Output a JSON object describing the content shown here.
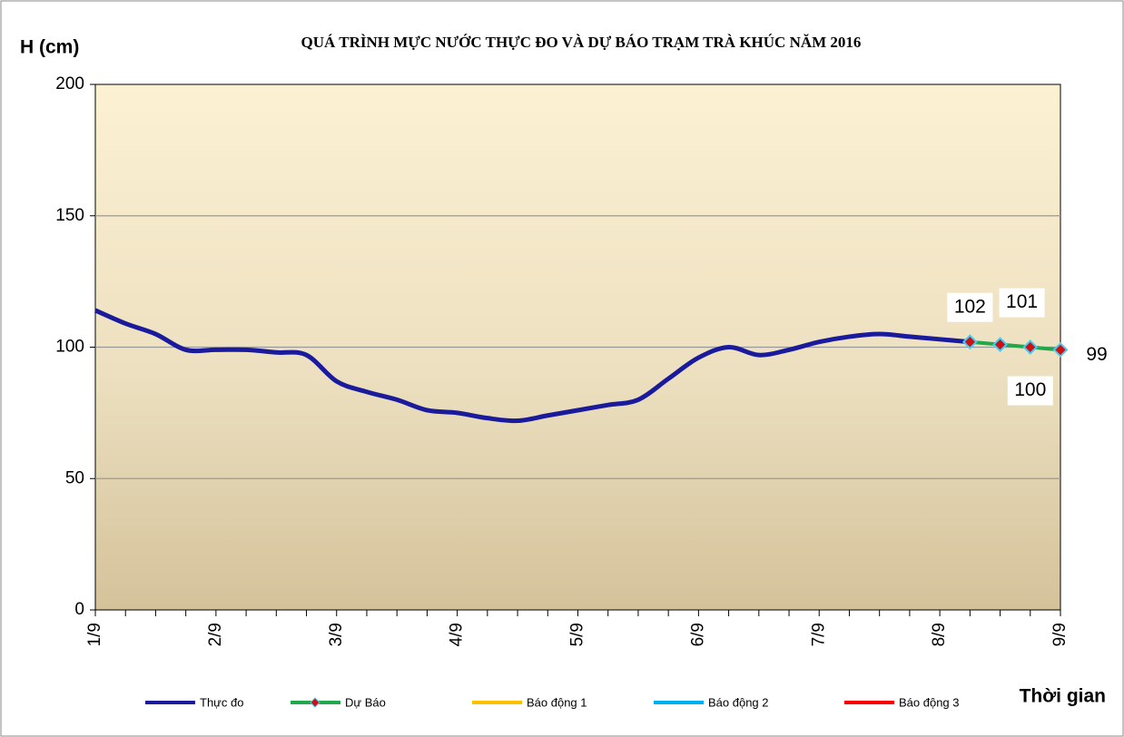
{
  "chart_data": {
    "type": "line",
    "title": "QUÁ TRÌNH MỰC NƯỚC THỰC ĐO VÀ DỰ BÁO TRẠM TRÀ KHÚC NĂM 2016",
    "y_label": "H (cm)",
    "x_label": "Thời gian",
    "categories": [
      "1/9",
      null,
      null,
      null,
      "2/9",
      null,
      null,
      null,
      "3/9",
      null,
      null,
      null,
      "4/9",
      null,
      null,
      null,
      "5/9",
      null,
      null,
      null,
      "6/9",
      null,
      null,
      null,
      "7/9",
      null,
      null,
      null,
      "8/9",
      null,
      null,
      null,
      "9/9"
    ],
    "series": [
      {
        "name": "Thực đo",
        "color": "#1a1a9c",
        "values": [
          114,
          109,
          105,
          99,
          99,
          99,
          98,
          97,
          87,
          83,
          80,
          76,
          75,
          73,
          72,
          74,
          76,
          78,
          80,
          88,
          96,
          100,
          97,
          99,
          102,
          104,
          105,
          104,
          103,
          102,
          null,
          null,
          null
        ]
      },
      {
        "name": "Dự Báo",
        "color": "#22a84a",
        "marker_color": "#d01010",
        "values": [
          null,
          null,
          null,
          null,
          null,
          null,
          null,
          null,
          null,
          null,
          null,
          null,
          null,
          null,
          null,
          null,
          null,
          null,
          null,
          null,
          null,
          null,
          null,
          null,
          null,
          null,
          null,
          null,
          null,
          102,
          101,
          100,
          99
        ]
      },
      {
        "name": "Báo động 1",
        "color": "#ffc000",
        "values": [
          null,
          null,
          null,
          null,
          null,
          null,
          null,
          null,
          null,
          null,
          null,
          null,
          null,
          null,
          null,
          null,
          null,
          null,
          null,
          null,
          null,
          null,
          null,
          null,
          null,
          null,
          null,
          null,
          null,
          null,
          null,
          null,
          null
        ]
      },
      {
        "name": "Báo động 2",
        "color": "#00b0f0",
        "values": [
          null,
          null,
          null,
          null,
          null,
          null,
          null,
          null,
          null,
          null,
          null,
          null,
          null,
          null,
          null,
          null,
          null,
          null,
          null,
          null,
          null,
          null,
          null,
          null,
          null,
          null,
          null,
          null,
          null,
          null,
          null,
          null,
          null
        ]
      },
      {
        "name": "Báo động 3",
        "color": "#ff0000",
        "values": [
          null,
          null,
          null,
          null,
          null,
          null,
          null,
          null,
          null,
          null,
          null,
          null,
          null,
          null,
          null,
          null,
          null,
          null,
          null,
          null,
          null,
          null,
          null,
          null,
          null,
          null,
          null,
          null,
          null,
          null,
          null,
          null,
          null
        ]
      }
    ],
    "ylim": [
      0,
      200
    ],
    "yticks": [
      0,
      50,
      100,
      150,
      200
    ],
    "grid": true
  }
}
